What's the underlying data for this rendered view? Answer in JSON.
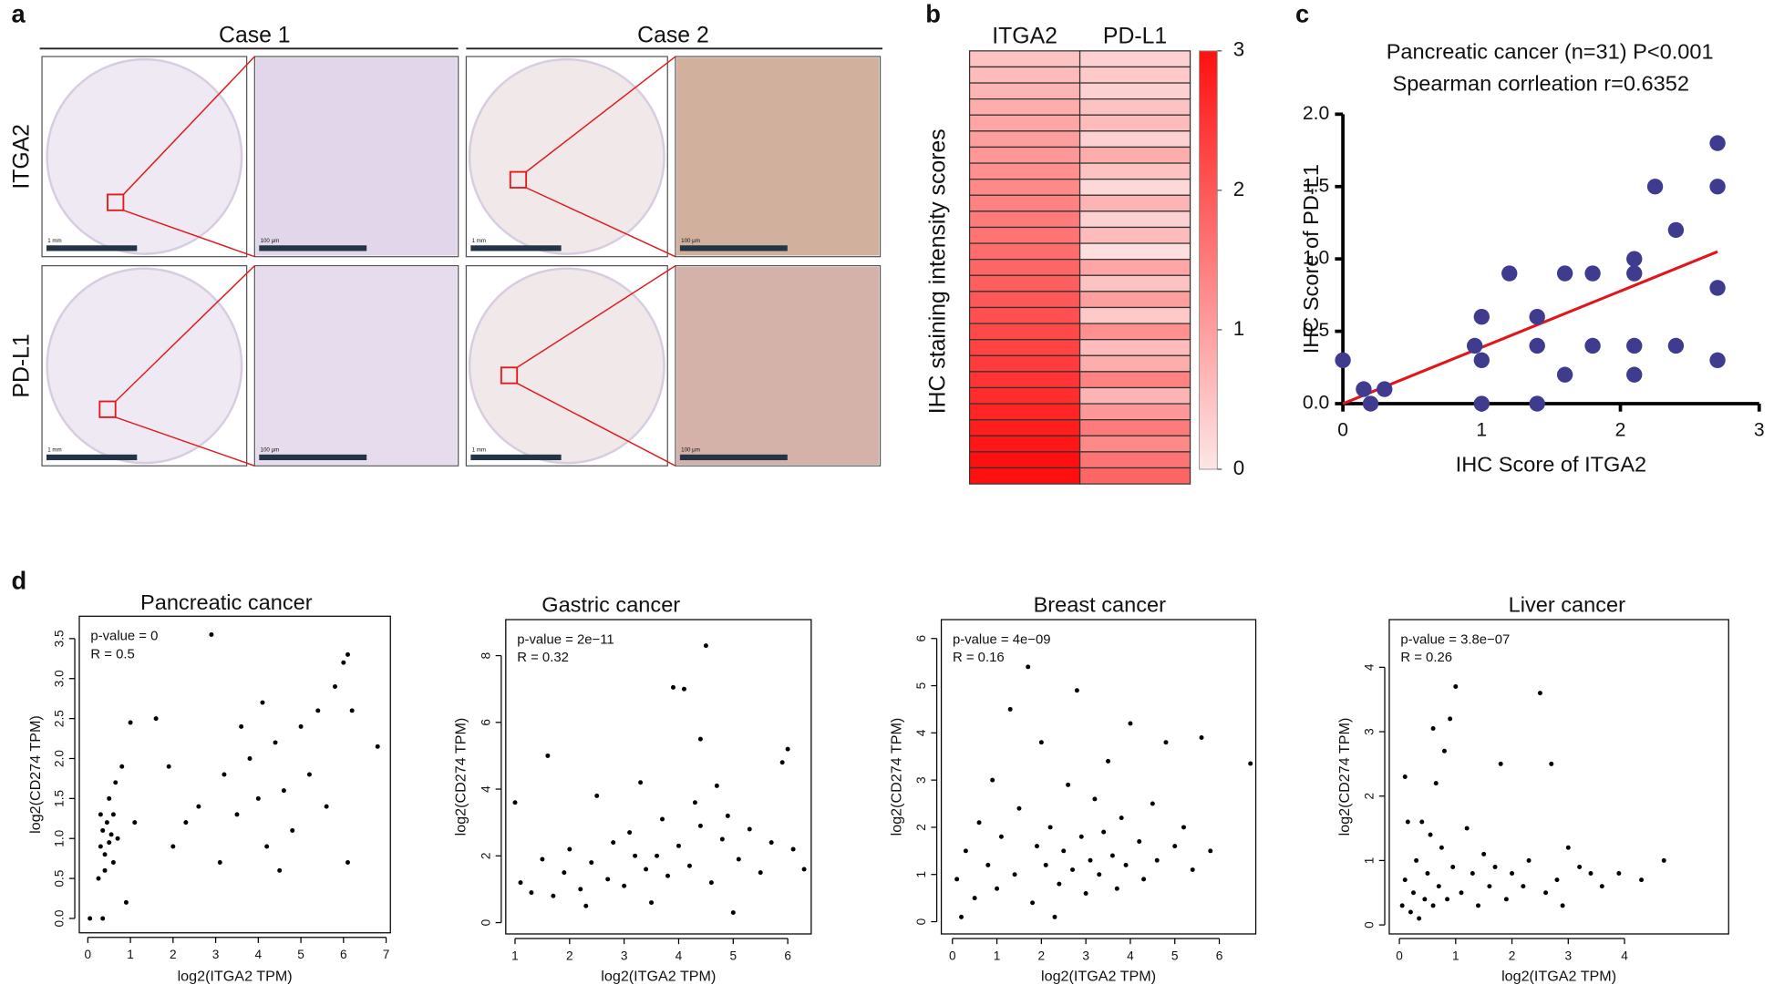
{
  "panel_labels": [
    "a",
    "b",
    "c",
    "d"
  ],
  "panel_a": {
    "columns": [
      "Case 1",
      "Case 2"
    ],
    "rows": [
      "ITGA2",
      "PD-L1"
    ],
    "scale_bars": [
      "1 mm",
      "100 μm"
    ]
  },
  "chart_data": [
    {
      "type": "heatmap",
      "ylabel": "IHC staining intensity scores",
      "clim": [
        0,
        3
      ],
      "cticks": [
        0,
        1,
        2,
        3
      ],
      "colormap": [
        "#fde6e6",
        "#ff1010"
      ],
      "series": [
        {
          "name": "ITGA2",
          "values": [
            0.5,
            0.6,
            0.7,
            0.8,
            0.9,
            1.0,
            1.1,
            1.2,
            1.3,
            1.4,
            1.5,
            1.6,
            1.7,
            1.8,
            1.9,
            2.0,
            2.1,
            2.2,
            2.3,
            2.4,
            2.5,
            2.6,
            2.7,
            2.8,
            2.9,
            3.0,
            3.0
          ]
        },
        {
          "name": "PD-L1",
          "values": [
            0.3,
            0.4,
            0.3,
            0.5,
            0.6,
            0.3,
            0.8,
            0.5,
            0.2,
            0.7,
            0.3,
            0.6,
            0.1,
            0.9,
            0.5,
            1.0,
            0.4,
            1.2,
            0.6,
            0.8,
            1.4,
            0.7,
            1.1,
            1.5,
            1.3,
            1.6,
            1.8
          ]
        }
      ]
    },
    {
      "type": "scatter",
      "frame": "axes",
      "title": "Pancreatic cancer (n=31) P<0.001",
      "subtitle": "Spearman corrleation r=0.6352",
      "xlabel": "IHC Score of ITGA2",
      "ylabel": "IHC Score of PD-L1",
      "color": "#3f3b8f",
      "fit_color": "#e0161b",
      "xlim": [
        0,
        3
      ],
      "ylim": [
        0,
        2
      ],
      "xticks": [
        0,
        1,
        2,
        3
      ],
      "yticks": [
        {
          "value": 0,
          "label": "0.0"
        },
        0.5,
        {
          "value": 1,
          "label": "1.0"
        },
        1.5,
        {
          "value": 2,
          "label": "2.0"
        }
      ],
      "x": [
        0,
        0.15,
        0.2,
        0.3,
        0.95,
        1,
        1,
        1,
        1.2,
        1.4,
        1.4,
        1.4,
        1.6,
        1.6,
        1.8,
        1.8,
        2.1,
        2.1,
        2.1,
        2.1,
        2.25,
        2.4,
        2.4,
        2.7,
        2.7,
        2.7,
        2.7
      ],
      "values": [
        0.3,
        0.1,
        0,
        0.1,
        0.4,
        0.6,
        0.3,
        0,
        0.9,
        0.6,
        0.4,
        0,
        0.9,
        0.2,
        0.9,
        0.4,
        1.0,
        0.9,
        0.4,
        0.2,
        1.5,
        1.2,
        0.4,
        1.8,
        1.5,
        0.8,
        0.3
      ],
      "fit_line": {
        "x": [
          0,
          2.7
        ],
        "values": [
          0,
          1.05
        ]
      }
    },
    {
      "type": "scatter",
      "frame": "box",
      "title": "Pancreatic cancer",
      "annotations": [
        "p-value = 0",
        "R = 0.5"
      ],
      "xlabel": "log2(ITGA2 TPM)",
      "ylabel": "log2(CD274 TPM)",
      "color": "#000000",
      "xlim": [
        -0.2,
        7.1
      ],
      "ylim": [
        -0.18,
        3.78
      ],
      "xticks": [
        0,
        1,
        2,
        3,
        4,
        5,
        6,
        7
      ],
      "yticks": [
        {
          "value": 0,
          "label": "0.0"
        },
        0.5,
        {
          "value": 1,
          "label": "1.0"
        },
        1.5,
        {
          "value": 2,
          "label": "2.0"
        },
        2.5,
        {
          "value": 3,
          "label": "3.0"
        },
        3.5
      ],
      "x": [
        0.3,
        0.35,
        0.4,
        0.45,
        0.5,
        0.55,
        0.6,
        0.3,
        0.4,
        0.5,
        0.6,
        0.7,
        0.25,
        0.65,
        0.8,
        1.0,
        1.1,
        0.9,
        0.05,
        0.35,
        1.6,
        1.9,
        2.3,
        2.6,
        2.9,
        3.2,
        3.5,
        3.8,
        4.0,
        4.2,
        4.4,
        4.6,
        4.8,
        5.0,
        5.2,
        5.4,
        5.6,
        5.8,
        6.0,
        6.1,
        6.2,
        6.8,
        3.1,
        4.5,
        6.1,
        2.0,
        3.6,
        4.1
      ],
      "values": [
        0.9,
        1.1,
        0.8,
        1.2,
        0.95,
        1.05,
        0.7,
        1.3,
        0.6,
        1.5,
        1.3,
        1.0,
        0.5,
        1.7,
        1.9,
        2.45,
        1.2,
        0.2,
        0,
        0,
        2.5,
        1.9,
        1.2,
        1.4,
        3.55,
        1.8,
        1.3,
        2.0,
        1.5,
        0.9,
        2.2,
        1.6,
        1.1,
        2.4,
        1.8,
        2.6,
        1.4,
        2.9,
        3.2,
        3.3,
        2.6,
        2.15,
        0.7,
        0.6,
        0.7,
        0.9,
        2.4,
        2.7
      ]
    },
    {
      "type": "scatter",
      "frame": "box",
      "title": "Gastric cancer",
      "annotations": [
        "p-value = 2e−11",
        "R = 0.32"
      ],
      "xlabel": "log2(ITGA2 TPM)",
      "ylabel": "log2(CD274 TPM)",
      "color": "#000000",
      "xlim": [
        0.83,
        6.43
      ],
      "ylim": [
        -0.34,
        9.08
      ],
      "xticks": [
        1,
        2,
        3,
        4,
        5,
        6
      ],
      "yticks": [
        0,
        2,
        4,
        6,
        8
      ],
      "x": [
        1.0,
        1.1,
        1.3,
        1.5,
        1.6,
        1.7,
        1.9,
        2.0,
        2.2,
        2.4,
        2.5,
        2.7,
        2.8,
        3.0,
        3.1,
        3.3,
        3.4,
        3.5,
        3.6,
        3.7,
        3.8,
        3.9,
        4.0,
        4.1,
        4.2,
        4.3,
        4.4,
        4.5,
        4.6,
        4.7,
        4.8,
        4.9,
        5.0,
        5.1,
        5.3,
        5.5,
        5.7,
        5.9,
        6.1,
        6.3,
        6.0,
        2.3,
        3.2,
        4.4
      ],
      "values": [
        3.6,
        1.2,
        0.9,
        1.9,
        5.0,
        0.8,
        1.5,
        2.2,
        1.0,
        1.8,
        3.8,
        1.3,
        2.4,
        1.1,
        2.7,
        4.2,
        1.6,
        0.6,
        2.0,
        3.1,
        1.4,
        7.05,
        2.3,
        7.0,
        1.7,
        3.6,
        2.9,
        8.3,
        1.2,
        4.1,
        2.5,
        3.2,
        0.3,
        1.9,
        2.8,
        1.5,
        2.4,
        4.8,
        2.2,
        1.6,
        5.2,
        0.5,
        2.0,
        5.5
      ]
    },
    {
      "type": "scatter",
      "frame": "box",
      "title": "Breast cancer",
      "annotations": [
        "p-value = 4e−09",
        "R = 0.16"
      ],
      "xlabel": "log2(ITGA2 TPM)",
      "ylabel": "log2(CD274 TPM)",
      "color": "#000000",
      "xlim": [
        -0.25,
        6.82
      ],
      "ylim": [
        -0.26,
        6.4
      ],
      "xticks": [
        0,
        1,
        2,
        3,
        4,
        5,
        6
      ],
      "yticks": [
        0,
        1,
        2,
        3,
        4,
        5,
        6
      ],
      "x": [
        0.1,
        0.3,
        0.5,
        0.6,
        0.8,
        0.9,
        1.0,
        1.1,
        1.3,
        1.4,
        1.5,
        1.7,
        1.8,
        1.9,
        2.0,
        2.1,
        2.2,
        2.4,
        2.5,
        2.6,
        2.7,
        2.8,
        2.9,
        3.0,
        3.1,
        3.2,
        3.3,
        3.4,
        3.5,
        3.6,
        3.7,
        3.8,
        3.9,
        4.0,
        4.2,
        4.3,
        4.5,
        4.6,
        4.8,
        5.0,
        5.2,
        5.4,
        5.6,
        5.8,
        6.7,
        0.2,
        2.3
      ],
      "values": [
        0.9,
        1.5,
        0.5,
        2.1,
        1.2,
        3.0,
        0.7,
        1.8,
        4.5,
        1.0,
        2.4,
        5.4,
        0.4,
        1.6,
        3.8,
        1.2,
        2.0,
        0.8,
        1.5,
        2.9,
        1.1,
        4.9,
        1.8,
        0.6,
        1.3,
        2.6,
        1.0,
        1.9,
        3.4,
        1.4,
        0.7,
        2.2,
        1.2,
        4.2,
        1.7,
        0.9,
        2.5,
        1.3,
        3.8,
        1.6,
        2.0,
        1.1,
        3.9,
        1.5,
        3.35,
        0.1,
        0.1
      ]
    },
    {
      "type": "scatter",
      "frame": "box",
      "title": "Liver cancer",
      "annotations": [
        "p-value = 3.8e−07",
        "R = 0.26"
      ],
      "xlabel": "log2(ITGA2 TPM)",
      "ylabel": "log2(CD274 TPM)",
      "color": "#000000",
      "xlim": [
        -0.18,
        5.85
      ],
      "ylim": [
        -0.14,
        4.74
      ],
      "xticks": [
        0,
        1,
        2,
        3,
        4
      ],
      "yticks": [
        0,
        1,
        2,
        3,
        4
      ],
      "x": [
        0.05,
        0.1,
        0.15,
        0.2,
        0.25,
        0.3,
        0.35,
        0.4,
        0.45,
        0.5,
        0.55,
        0.6,
        0.65,
        0.7,
        0.75,
        0.8,
        0.85,
        0.9,
        0.95,
        1.0,
        1.1,
        1.2,
        1.3,
        1.4,
        1.5,
        1.6,
        1.7,
        1.8,
        1.9,
        2.0,
        2.2,
        2.3,
        2.5,
        2.6,
        2.7,
        2.8,
        2.9,
        3.0,
        3.2,
        3.4,
        3.6,
        3.9,
        4.3,
        4.7,
        0.1,
        0.6
      ],
      "values": [
        0.3,
        0.7,
        1.6,
        0.2,
        0.5,
        1.0,
        0.1,
        1.6,
        0.4,
        0.8,
        1.4,
        0.3,
        2.2,
        0.6,
        1.2,
        2.7,
        0.4,
        3.2,
        0.9,
        3.7,
        0.5,
        1.5,
        0.8,
        0.3,
        1.1,
        0.6,
        0.9,
        2.5,
        0.4,
        0.8,
        0.6,
        1.0,
        3.6,
        0.5,
        2.5,
        0.7,
        0.3,
        1.2,
        0.9,
        0.8,
        0.6,
        0.8,
        0.7,
        1.0,
        2.3,
        3.05
      ]
    }
  ]
}
